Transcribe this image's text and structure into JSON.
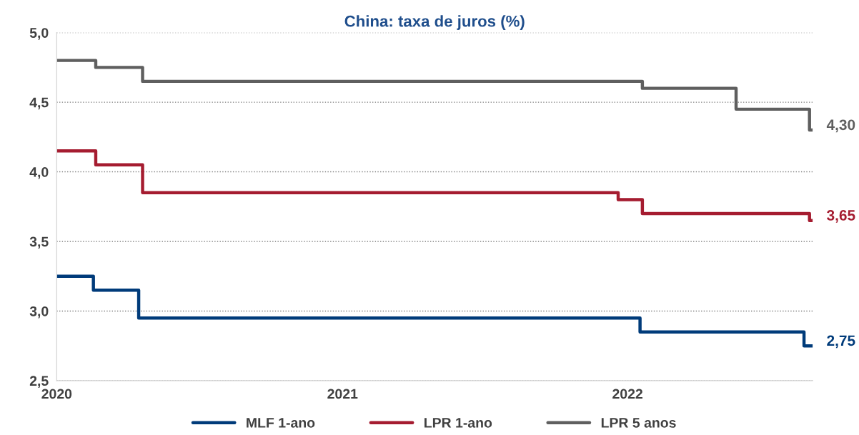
{
  "chart_data": {
    "type": "step",
    "title": "China: taxa de juros (%)",
    "series": [
      {
        "name": "MLF 1-ano",
        "color": "#003b7a",
        "x": [
          "2020-01-01",
          "2020-02-17",
          "2020-04-15",
          "2022-01-17",
          "2022-08-15",
          "2022-08-26"
        ],
        "values": [
          3.25,
          3.15,
          2.95,
          2.85,
          2.75,
          2.75
        ]
      },
      {
        "name": "LPR 1-ano",
        "color": "#a51c30",
        "x": [
          "2020-01-01",
          "2020-02-20",
          "2020-04-20",
          "2021-12-20",
          "2022-01-20",
          "2022-08-22",
          "2022-08-26"
        ],
        "values": [
          4.15,
          4.05,
          3.85,
          3.8,
          3.7,
          3.65,
          3.65
        ]
      },
      {
        "name": "LPR 5 anos",
        "color": "#5f5f5f",
        "x": [
          "2020-01-01",
          "2020-02-20",
          "2020-04-20",
          "2022-01-20",
          "2022-05-20",
          "2022-08-22",
          "2022-08-26"
        ],
        "values": [
          4.8,
          4.75,
          4.65,
          4.6,
          4.45,
          4.3,
          4.3
        ]
      }
    ],
    "annotations": [
      {
        "text": "2,75",
        "x": "2022-08-26",
        "y": 2.75
      },
      {
        "text": "3,65",
        "x": "2022-08-26",
        "y": 3.65
      },
      {
        "text": "4,30",
        "x": "2022-08-26",
        "y": 4.3
      }
    ],
    "xlim": [
      "2020-01-01",
      "2022-08-26"
    ],
    "xticks": [
      {
        "value": "2020-01-01",
        "label": "2020"
      },
      {
        "value": "2021-01-01",
        "label": "2021"
      },
      {
        "value": "2022-01-01",
        "label": "2022"
      }
    ],
    "ylim": [
      2.5,
      5.0
    ],
    "yticks": [
      {
        "value": 2.5,
        "label": "2,5"
      },
      {
        "value": 3.0,
        "label": "3,0"
      },
      {
        "value": 3.5,
        "label": "3,5"
      },
      {
        "value": 4.0,
        "label": "4,0"
      },
      {
        "value": 4.5,
        "label": "4,5"
      },
      {
        "value": 5.0,
        "label": "5,0"
      }
    ],
    "grid": "y",
    "legend": "bottom",
    "line_style": "solid",
    "marker": "none"
  }
}
